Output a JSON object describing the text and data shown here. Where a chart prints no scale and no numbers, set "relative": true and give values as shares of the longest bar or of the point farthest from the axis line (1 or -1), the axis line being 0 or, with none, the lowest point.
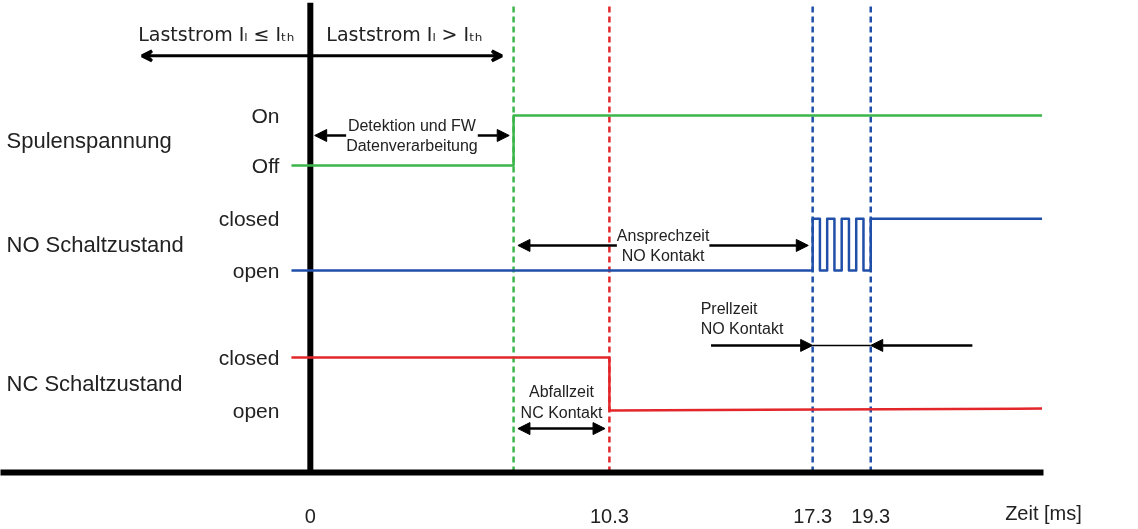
{
  "chart_data": {
    "type": "line",
    "relative": true,
    "xlabel": "Zeit [ms]",
    "xlim": [
      -10.67,
      25.25
    ],
    "xticks": [
      0,
      10.3,
      17.3,
      19.3
    ],
    "grid": false,
    "marker": "none",
    "line_style": "solid",
    "series": [
      {
        "color": "#3cb54a",
        "x": [
          -0.65,
          7,
          7,
          25.2
        ],
        "values": [
          0.86,
          0.86,
          1,
          1
        ]
      },
      {
        "color": "#1f4fa8",
        "x": [
          -0.65,
          17.3,
          17.3,
          17.55,
          17.55,
          17.8,
          17.8,
          18.05,
          18.05,
          18.3,
          18.3,
          18.55,
          18.55,
          18.8,
          18.8,
          19.05,
          19.05,
          19.3,
          19.3,
          25.2
        ],
        "values": [
          0.566,
          0.566,
          0.711,
          0.711,
          0.566,
          0.566,
          0.711,
          0.711,
          0.566,
          0.566,
          0.711,
          0.711,
          0.566,
          0.566,
          0.711,
          0.711,
          0.566,
          0.566,
          0.711,
          0.711
        ]
      },
      {
        "color": "#e3262a",
        "x": [
          -0.65,
          10.3,
          10.3,
          25.2
        ],
        "values": [
          0.322,
          0.322,
          0.174,
          0.179
        ]
      }
    ],
    "ref_lines": [
      {
        "axis": "x",
        "value": 0,
        "color": "#000000",
        "line_style": "solid"
      },
      {
        "axis": "x",
        "value": 7,
        "color": "#3cb54a",
        "line_style": "dashed"
      },
      {
        "axis": "x",
        "value": 10.3,
        "color": "#e3262a",
        "line_style": "dashed"
      },
      {
        "axis": "x",
        "value": 17.3,
        "color": "#1f4fa8",
        "line_style": "dashed"
      },
      {
        "axis": "x",
        "value": 19.3,
        "color": "#1f4fa8",
        "line_style": "dashed"
      }
    ],
    "annotations": [
      "Laststrom Iₗ ≤ Iₜₕ",
      "Laststrom Iₗ > Iₜₕ",
      "Spulenspannung",
      "NO Schaltzustand",
      "NC Schaltzustand",
      "On",
      "Off",
      "closed",
      "open",
      "closed",
      "open",
      "Detektion und FW\nDatenverarbeitung",
      "Ansprechzeit\nNO Kontakt",
      "Prellzeit\nNO Kontakt",
      "Abfallzeit\nNC Kontakt"
    ]
  }
}
